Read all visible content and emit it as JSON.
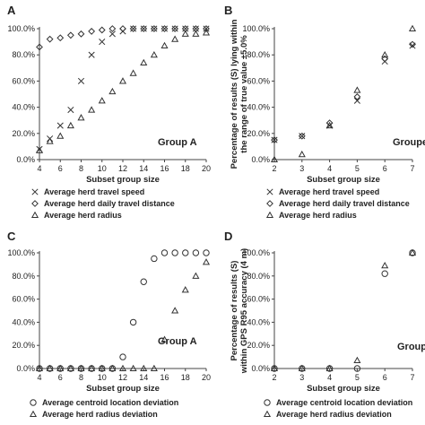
{
  "chart_data": [
    {
      "id": "A",
      "type": "scatter",
      "panel_label": "A",
      "group_label": "Group A",
      "xlabel": "Subset group size",
      "ylabel": "",
      "xlim": [
        4,
        20
      ],
      "ylim": [
        0,
        100
      ],
      "xticks": [
        "4",
        "6",
        "8",
        "10",
        "12",
        "14",
        "16",
        "18",
        "20"
      ],
      "yticks": [
        "0.0%",
        "20.0%",
        "40.0%",
        "60.0%",
        "80.0%",
        "100.0%"
      ],
      "series": [
        {
          "name": "Average herd travel speed",
          "marker": "x",
          "x": [
            4,
            5,
            6,
            7,
            8,
            9,
            10,
            11,
            12,
            13,
            14,
            15,
            16,
            17,
            18,
            19,
            20
          ],
          "y": [
            8,
            16,
            26,
            38,
            60,
            80,
            90,
            96,
            98,
            100,
            100,
            100,
            100,
            100,
            100,
            100,
            100
          ]
        },
        {
          "name": "Average herd daily travel distance",
          "marker": "diamond",
          "x": [
            4,
            5,
            6,
            7,
            8,
            9,
            10,
            11,
            12,
            13,
            14,
            15,
            16,
            17,
            18,
            19,
            20
          ],
          "y": [
            86,
            92,
            93,
            95,
            96,
            98,
            99,
            100,
            100,
            100,
            100,
            100,
            100,
            100,
            100,
            100,
            100
          ]
        },
        {
          "name": "Average herd radius",
          "marker": "triangle",
          "x": [
            4,
            5,
            6,
            7,
            8,
            9,
            10,
            11,
            12,
            13,
            14,
            15,
            16,
            17,
            18,
            19,
            20
          ],
          "y": [
            7,
            14,
            18,
            26,
            32,
            38,
            45,
            52,
            60,
            66,
            74,
            80,
            87,
            92,
            96,
            96,
            97
          ]
        }
      ]
    },
    {
      "id": "B",
      "type": "scatter",
      "panel_label": "B",
      "group_label": "Groupe",
      "xlabel": "Subset group size",
      "ylabel": "Percentage of results (S) lying within the range of true value ±5.0%",
      "xlim": [
        2,
        7
      ],
      "ylim": [
        0,
        100
      ],
      "xticks": [
        "2",
        "3",
        "4",
        "5",
        "6",
        "7"
      ],
      "yticks": [
        "0.0%",
        "20.0%",
        "40.0%",
        "60.0%",
        "80.0%",
        "100.0%"
      ],
      "series": [
        {
          "name": "Average herd travel speed",
          "marker": "x",
          "x": [
            2,
            3,
            4,
            5,
            6,
            7
          ],
          "y": [
            15,
            18,
            26,
            45,
            75,
            87
          ]
        },
        {
          "name": "Average herd daily travel distance",
          "marker": "diamond",
          "x": [
            2,
            3,
            4,
            5,
            6,
            7
          ],
          "y": [
            15,
            18,
            28,
            48,
            77,
            88
          ]
        },
        {
          "name": "Average herd radius",
          "marker": "triangle",
          "x": [
            2,
            3,
            4,
            5,
            6,
            7
          ],
          "y": [
            0,
            4,
            26,
            53,
            80,
            100
          ]
        }
      ]
    },
    {
      "id": "C",
      "type": "scatter",
      "panel_label": "C",
      "group_label": "Group A",
      "xlabel": "Subset group size",
      "ylabel": "",
      "xlim": [
        4,
        20
      ],
      "ylim": [
        0,
        100
      ],
      "xticks": [
        "4",
        "6",
        "8",
        "10",
        "12",
        "14",
        "16",
        "18",
        "20"
      ],
      "yticks": [
        "0.0%",
        "20.0%",
        "40.0%",
        "60.0%",
        "80.0%",
        "100.0%"
      ],
      "series": [
        {
          "name": "Average centroid location deviation",
          "marker": "circle",
          "x": [
            4,
            5,
            6,
            7,
            8,
            9,
            10,
            11,
            12,
            13,
            14,
            15,
            16,
            17,
            18,
            19,
            20
          ],
          "y": [
            0,
            0,
            0,
            0,
            0,
            0,
            0,
            0,
            10,
            40,
            75,
            95,
            100,
            100,
            100,
            100,
            100
          ]
        },
        {
          "name": "Average herd radius deviation",
          "marker": "triangle",
          "x": [
            4,
            5,
            6,
            7,
            8,
            9,
            10,
            11,
            12,
            13,
            14,
            15,
            16,
            17,
            18,
            19,
            20
          ],
          "y": [
            0,
            0,
            0,
            0,
            0,
            0,
            0,
            0,
            0,
            0,
            0,
            0,
            25,
            50,
            68,
            80,
            92
          ]
        }
      ]
    },
    {
      "id": "D",
      "type": "scatter",
      "panel_label": "D",
      "group_label": "Group",
      "xlabel": "Subset group size",
      "ylabel": "Percentage of results (S) within GPS R95 accuracy (4 m)",
      "xlim": [
        2,
        7
      ],
      "ylim": [
        0,
        100
      ],
      "xticks": [
        "2",
        "3",
        "4",
        "5",
        "6",
        "7"
      ],
      "yticks": [
        "0.0%",
        "20.0%",
        "40.0%",
        "60.0%",
        "80.0%",
        "100.0%"
      ],
      "series": [
        {
          "name": "Average centroid location deviation",
          "marker": "circle",
          "x": [
            2,
            3,
            4,
            5,
            6,
            7
          ],
          "y": [
            0,
            0,
            0,
            0,
            82,
            100
          ]
        },
        {
          "name": "Average herd radius deviation",
          "marker": "triangle",
          "x": [
            2,
            3,
            4,
            5,
            6,
            7
          ],
          "y": [
            0,
            0,
            0,
            7,
            89,
            100
          ]
        }
      ]
    }
  ],
  "legends": {
    "top": [
      {
        "marker": "x",
        "label": "Average herd travel speed"
      },
      {
        "marker": "diamond",
        "label": "Average herd daily travel distance"
      },
      {
        "marker": "triangle",
        "label": "Average herd radius"
      }
    ],
    "bottom": [
      {
        "marker": "circle",
        "label": "Average centroid location deviation"
      },
      {
        "marker": "triangle",
        "label": "Average herd radius deviation"
      }
    ]
  }
}
